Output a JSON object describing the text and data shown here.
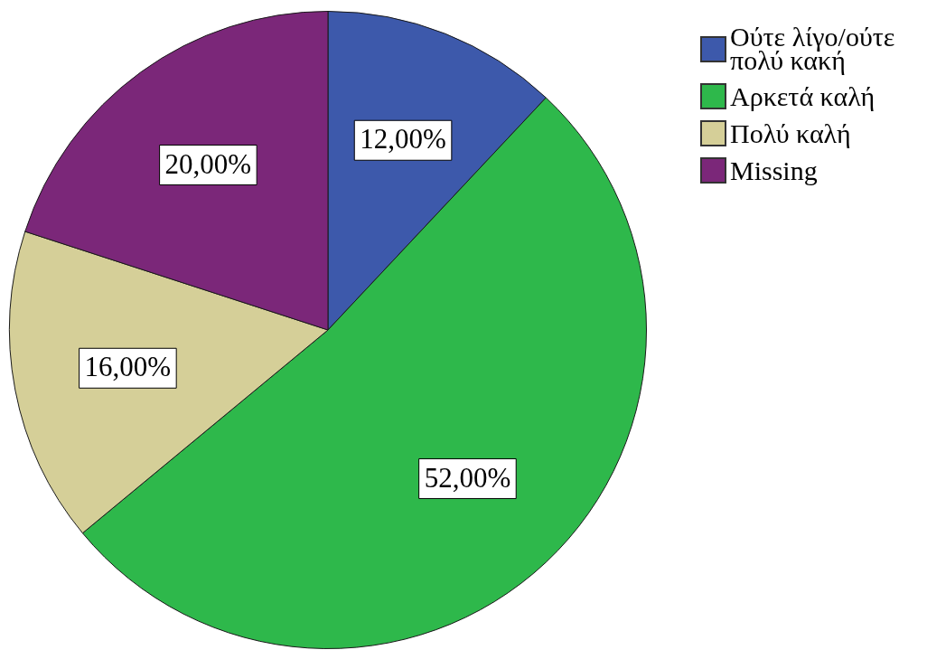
{
  "chart_data": {
    "type": "pie",
    "categories": [
      "Ούτε λίγο/ούτε πολύ κακή",
      "Αρκετά καλή",
      "Πολύ καλή",
      "Missing"
    ],
    "values": [
      12,
      52,
      16,
      20
    ],
    "colors": [
      "#3d59ab",
      "#2eb84b",
      "#d5cf98",
      "#7b2779"
    ],
    "value_labels": [
      "12,00%",
      "52,00%",
      "16,00%",
      "20,00%"
    ],
    "legend": "top right"
  }
}
